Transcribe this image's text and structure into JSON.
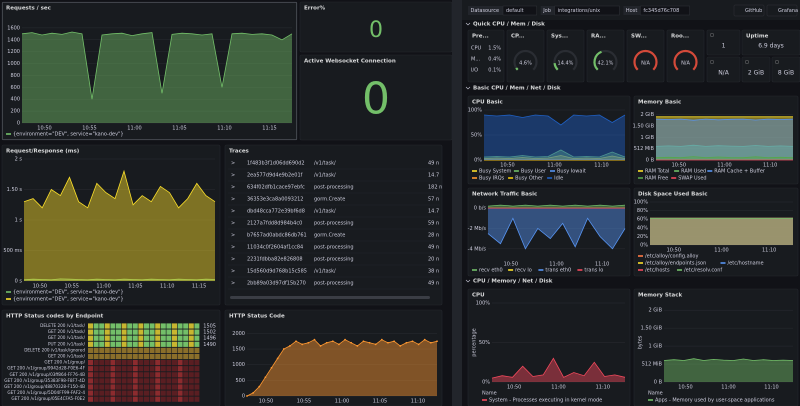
{
  "left": {
    "requests": {
      "title": "Requests / sec",
      "ylim": [
        0,
        1800
      ],
      "yticks": [
        1600,
        1400,
        1200,
        1000,
        800,
        600,
        400,
        200,
        0
      ],
      "xticks": [
        "10:50",
        "10:55",
        "11:00",
        "11:05",
        "11:10",
        "11:15"
      ],
      "series": [
        {
          "name": "{environment=\"DEV\", service=\"kano-dev\"}",
          "color": "#73bf69",
          "values": [
            1500,
            1520,
            1480,
            1510,
            1490,
            1530,
            1500,
            400,
            1480,
            1500,
            1510,
            1470,
            1500,
            1520,
            500,
            1490,
            1510,
            1500,
            1480,
            1500,
            600,
            1500,
            1510,
            1490,
            1500,
            1480,
            1400,
            1500
          ]
        }
      ]
    },
    "error": {
      "title": "Error%",
      "value": 0
    },
    "websocket": {
      "title": "Active Websocket Connection",
      "value": 0
    },
    "reqresp": {
      "title": "Request/Response (ms)",
      "ylim": [
        0,
        2000
      ],
      "yticks": [
        {
          "value": 2000,
          "label": "2 s"
        },
        {
          "value": 1500,
          "label": "1.50 s"
        },
        {
          "value": 1000,
          "label": "1 s"
        },
        {
          "value": 500,
          "label": "500 ms"
        },
        {
          "value": 0,
          "label": "0 s"
        }
      ],
      "xticks": [
        "10:50",
        "10:55",
        "11:00",
        "11:05",
        "11:10",
        "11:15"
      ],
      "series": [
        {
          "name": "{environment=\"DEV\", service=\"kano-dev\"}",
          "color": "#73bf69",
          "values": [
            20,
            30,
            25,
            20,
            35,
            30,
            25,
            20,
            30,
            25,
            20,
            30,
            25,
            20,
            30,
            25,
            20,
            30,
            25,
            20,
            30,
            25
          ]
        },
        {
          "name": "{environment=\"DEV\", service=\"kano-dev\"}",
          "color": "#fade2a",
          "values": [
            1300,
            1350,
            1200,
            1500,
            1400,
            1700,
            1300,
            1200,
            1600,
            1450,
            1350,
            1800,
            1250,
            1400,
            1300,
            1550,
            1450,
            1200,
            1350,
            1600,
            1400,
            1300
          ]
        }
      ]
    },
    "traces": {
      "title": "Traces",
      "rows": [
        [
          "1f483b3f1d06dd690d2",
          "/v1/task/",
          "49 n"
        ],
        [
          "2ea577d9d4e9b2e01f",
          "/v1/task/",
          "14.7"
        ],
        [
          "634f02dfb1cace97ebfc",
          "post-processing",
          "182 n"
        ],
        [
          "36353e3ca8a0093212",
          "gorm.Create",
          "57 n"
        ],
        [
          "dbd48cca772e39bf6d8",
          "/v1/task/",
          "14.7"
        ],
        [
          "2127a7fdd8d984b4c0",
          "post-processing",
          "59 n"
        ],
        [
          "b7657ad0abdc86db761",
          "gorm.Create",
          "28 n"
        ],
        [
          "11034c0f2604af1cc84",
          "post-processing",
          "49 n"
        ],
        [
          "2231fdbba82e826808",
          "post-processing",
          "20 n"
        ],
        [
          "15d560d9d768b15c585",
          "/v1/task/",
          "38 n"
        ],
        [
          "2bb89a03d97df15b270",
          "post-processing",
          "49 n"
        ]
      ]
    },
    "statuscodes": {
      "title": "HTTP Status codes by Endpoint",
      "rows": [
        {
          "label": "DELETE 200 /v1/task/",
          "value": 1505
        },
        {
          "label": "GET 200 /v1/task/",
          "value": 1502
        },
        {
          "label": "GET 200 /v1/task/",
          "value": 1496
        },
        {
          "label": "PUT 200 /v1/task/",
          "value": 1490
        },
        {
          "label": "DELETE 200 /v1/task/ignored"
        },
        {
          "label": "GET 200 /v1/task/"
        },
        {
          "label": "GET 200 /v1/group/"
        },
        {
          "label": "GET 200 /v1/group/9942d28-F0E6-4F"
        },
        {
          "label": "GET 200 /v1/group/03ff864-FF76-4B"
        },
        {
          "label": "GET 200 /v1/group/35383F98-F8F7-4D"
        },
        {
          "label": "GET 200 /v1/group/48870328-F150-4B"
        },
        {
          "label": "GET 200 /v1/group/5D04FF99-FAF2-4"
        },
        {
          "label": "GET 200 /v1/group/05E4CFA5-F0E2"
        }
      ]
    },
    "statuscode": {
      "title": "HTTP Status Code",
      "ylim": [
        0,
        2300
      ],
      "yticks": [
        2000,
        1500,
        1000,
        500,
        0
      ],
      "xticks": [
        "10:50",
        "10:55",
        "11:00",
        "11:05",
        "11:10"
      ],
      "series": [
        {
          "name": "",
          "color": "#ff9830",
          "values": [
            0,
            100,
            300,
            600,
            900,
            1200,
            1500,
            1600,
            1750,
            1650,
            1700,
            1800,
            1600,
            1700,
            1750,
            1650,
            1800,
            1700,
            1600,
            1750,
            1700,
            1650,
            1800,
            1700,
            1750,
            1600,
            1700,
            1750,
            1650,
            1800,
            1700,
            1750
          ]
        }
      ]
    }
  },
  "right": {
    "header": {
      "vars": [
        {
          "label": "Datasource",
          "value": "default"
        },
        {
          "label": "Job",
          "value": "integrations/unix"
        },
        {
          "label": "Host",
          "value": "fc345d76c708"
        }
      ],
      "buttons": [
        "GitHub",
        "Grafana"
      ]
    },
    "sections": [
      "Quick CPU / Mem / Disk",
      "Basic CPU / Mem / Net / Disk",
      "CPU / Memory / Net / Disk"
    ],
    "pressure": {
      "title": "Pre...",
      "rows": [
        {
          "name": "CPU",
          "value": 1.5,
          "label": "1.5%"
        },
        {
          "name": "M...",
          "value": 0.4,
          "label": "0.4%"
        },
        {
          "name": "I/O",
          "value": 0.1,
          "label": "0.1%"
        }
      ]
    },
    "gauges": [
      {
        "title": "CP...",
        "value": 4.6,
        "label": "4.6%"
      },
      {
        "title": "Sys...",
        "value": 14.4,
        "label": "14.4%"
      },
      {
        "title": "RA...",
        "value": 42.1,
        "label": "42.1%"
      },
      {
        "title": "SW...",
        "value": null,
        "label": "N/A"
      },
      {
        "title": "Roo...",
        "value": null,
        "label": "N/A"
      }
    ],
    "stats": [
      {
        "value": 1
      },
      {
        "title": "Uptime",
        "value": 6.9,
        "label": "6.9 days"
      },
      {
        "label": "N/A"
      },
      {
        "value": 2,
        "label": "2 GiB"
      },
      {
        "value": 8,
        "label": "8 GiB"
      }
    ],
    "cpubasic": {
      "title": "CPU Basic",
      "ylim": [
        0,
        100
      ],
      "yticks": [
        {
          "value": 100,
          "label": "100%"
        },
        {
          "value": 50,
          "label": "50%"
        },
        {
          "value": 0,
          "label": "0%"
        }
      ],
      "xticks": [
        "10:50",
        "11:00",
        "11:10"
      ],
      "series": [
        {
          "name": "Busy System",
          "color": "#fade2a",
          "values": [
            3,
            4,
            3,
            5,
            3,
            4,
            9,
            3,
            4,
            3,
            8,
            3
          ]
        },
        {
          "name": "Busy User",
          "color": "#73bf69",
          "values": [
            6,
            7,
            6,
            9,
            6,
            7,
            20,
            6,
            7,
            6,
            16,
            6
          ]
        },
        {
          "name": "Busy Iowait",
          "color": "#5794f2",
          "values": [
            1,
            1,
            1,
            1,
            1,
            1,
            1,
            1,
            1,
            1,
            1,
            1
          ]
        },
        {
          "name": "Busy IRQs",
          "color": "#ff9830",
          "values": [
            0,
            0,
            0,
            0,
            0,
            0,
            0,
            0,
            0,
            0,
            0,
            0
          ]
        },
        {
          "name": "Busy Other",
          "color": "#f2cc0c",
          "values": [
            0,
            0,
            0,
            0,
            0,
            0,
            0,
            0,
            0,
            0,
            0,
            0
          ]
        },
        {
          "name": "Idle",
          "color": "#1f60c4",
          "values": [
            90,
            88,
            90,
            85,
            90,
            88,
            70,
            90,
            88,
            90,
            75,
            90
          ]
        }
      ]
    },
    "membasic": {
      "title": "Memory Basic",
      "ylim": [
        0,
        2.2
      ],
      "yticks": [
        {
          "value": 2,
          "label": "2 GiB"
        },
        {
          "value": 1.5,
          "label": "1.50 GiB"
        },
        {
          "value": 1,
          "label": "1 GiB"
        },
        {
          "value": 0.5,
          "label": "512 MiB"
        },
        {
          "value": 0,
          "label": "0 B"
        }
      ],
      "xticks": [
        "10:50",
        "11:00",
        "11:10"
      ],
      "series": [
        {
          "name": "RAM Total",
          "color": "#fade2a",
          "values": [
            1.9,
            1.9,
            1.9,
            1.9,
            1.9,
            1.9,
            1.9,
            1.9,
            1.9,
            1.9,
            1.9,
            1.9
          ]
        },
        {
          "name": "RAM Used",
          "color": "#73bf69",
          "values": [
            0.6,
            0.62,
            0.6,
            0.65,
            0.6,
            0.63,
            0.61,
            0.6,
            0.64,
            0.6,
            0.62,
            0.6
          ]
        },
        {
          "name": "RAM Cache + Buffer",
          "color": "#5794f2",
          "values": [
            1.8,
            1.78,
            1.8,
            1.75,
            1.8,
            1.77,
            1.79,
            1.8,
            1.76,
            1.8,
            1.78,
            1.8
          ]
        },
        {
          "name": "RAM Free",
          "color": "#56a64b",
          "values": [
            0.1,
            0.12,
            0.1,
            0.15,
            0.1,
            0.13,
            0.11,
            0.1,
            0.14,
            0.1,
            0.12,
            0.1
          ]
        },
        {
          "name": "SWAP Used",
          "color": "#f2495c",
          "values": [
            0,
            0,
            0,
            0,
            0,
            0,
            0,
            0,
            0,
            0,
            0,
            0
          ]
        }
      ]
    },
    "net": {
      "title": "Network Traffic Basic",
      "ylim": [
        -5,
        0.6
      ],
      "yticks": [
        {
          "value": 0,
          "label": "0 b/s"
        },
        {
          "value": -2,
          "label": "-2 Mb/s"
        },
        {
          "value": -4,
          "label": "-4 Mb/s"
        }
      ],
      "xticks": [
        "10:50",
        "11:00",
        "11:10"
      ],
      "series": [
        {
          "name": "recv eth0",
          "color": "#73bf69",
          "values": [
            0.2,
            0.3,
            0.2,
            0.3,
            0.2,
            0.3,
            0.2,
            0.3,
            0.2,
            0.3,
            0.2,
            0.3
          ]
        },
        {
          "name": "recv lo",
          "color": "#fade2a",
          "values": [
            0,
            0,
            0,
            0,
            0,
            0,
            0,
            0,
            0,
            0,
            0,
            0
          ]
        },
        {
          "name": "trans eth0",
          "color": "#5794f2",
          "values": [
            -2.5,
            -3.5,
            -1,
            -4,
            -2,
            -3,
            -1.5,
            -3.8,
            -1,
            -2.8,
            -4,
            -2
          ]
        },
        {
          "name": "trans lo",
          "color": "#f2495c",
          "values": [
            0,
            0,
            0,
            0,
            0,
            0,
            0,
            0,
            0,
            0,
            0,
            0
          ]
        }
      ]
    },
    "disk": {
      "title": "Disk Space Used Basic",
      "ylim": [
        0,
        100
      ],
      "yticks": [
        {
          "value": 100,
          "label": "100%"
        },
        {
          "value": 80,
          "label": "80%"
        },
        {
          "value": 60,
          "label": "60%"
        },
        {
          "value": 40,
          "label": "40%"
        },
        {
          "value": 20,
          "label": "20%"
        },
        {
          "value": 0,
          "label": "0%"
        }
      ],
      "xticks": [
        "10:50",
        "11:00",
        "11:10"
      ],
      "series": [
        {
          "name": "/etc/alloy/config.alloy",
          "color": "#ff7a45",
          "values": [
            62,
            62,
            62,
            62,
            62,
            62,
            62,
            62,
            62,
            62,
            62,
            62
          ]
        },
        {
          "name": "/etc/alloy/endpoints.json",
          "color": "#fade2a",
          "values": [
            62,
            62,
            62,
            62,
            62,
            62,
            62,
            62,
            62,
            62,
            62,
            62
          ]
        },
        {
          "name": "/etc/hostname",
          "color": "#5794f2",
          "values": [
            62,
            62,
            62,
            62,
            62,
            62,
            62,
            62,
            62,
            62,
            62,
            62
          ]
        },
        {
          "name": "/etc/hosts",
          "color": "#f2495c",
          "values": [
            62,
            62,
            62,
            62,
            62,
            62,
            62,
            62,
            62,
            62,
            62,
            62
          ]
        },
        {
          "name": "/etc/resolv.conf",
          "color": "#73bf69",
          "values": [
            62,
            62,
            62,
            62,
            62,
            62,
            62,
            62,
            62,
            62,
            62,
            62
          ]
        }
      ]
    },
    "cpu": {
      "title": "CPU",
      "axis_label": "percentage",
      "legend_head": "Name",
      "ylim": [
        0,
        100
      ],
      "yticks": [
        {
          "value": 100,
          "label": "100%"
        },
        {
          "value": 50,
          "label": "50%"
        },
        {
          "value": 0,
          "label": "0%"
        }
      ],
      "xticks": [
        "10:50",
        "11:00",
        "11:10"
      ],
      "series": [
        {
          "name": "System - Processes executing in kernel mode",
          "color": "#f2495c",
          "values": [
            5,
            8,
            6,
            20,
            7,
            9,
            30,
            6,
            12,
            8,
            25,
            7,
            9,
            6
          ]
        }
      ]
    },
    "memstack": {
      "title": "Memory Stack",
      "axis_label": "bytes",
      "legend_head": "Name",
      "ylim": [
        0,
        2.2
      ],
      "yticks": [
        {
          "value": 2,
          "label": "2 GiB"
        },
        {
          "value": 1.5,
          "label": "1.50 GiB"
        },
        {
          "value": 1,
          "label": "1 GiB"
        },
        {
          "value": 0.5,
          "label": "512 MiB"
        },
        {
          "value": 0,
          "label": "0 B"
        }
      ],
      "xticks": [
        "10:50",
        "11:00",
        "11:10"
      ],
      "series": [
        {
          "name": "Apps - Memory used by user-space applications",
          "color": "#73bf69",
          "values": [
            0.6,
            0.62,
            0.6,
            0.65,
            0.6,
            0.63,
            0.61,
            0.6,
            0.64,
            0.6,
            0.62,
            0.6,
            0.61,
            0.6
          ]
        }
      ]
    }
  }
}
